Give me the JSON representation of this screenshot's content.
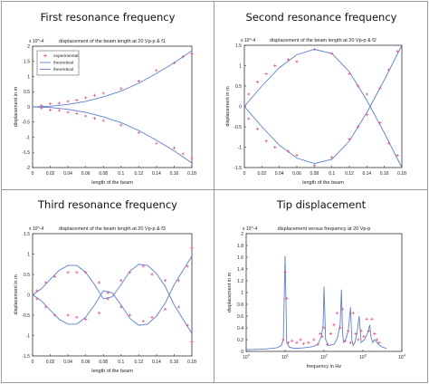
{
  "panels": [
    {
      "heading": "First resonance frequency"
    },
    {
      "heading": "Second resonance frequency"
    },
    {
      "heading": "Third resonance frequency"
    },
    {
      "heading": "Tip displacement"
    }
  ],
  "chart_data": [
    {
      "type": "line",
      "title": "displacement of the beam length at 20 Vp-p & f1",
      "xlabel": "length of the beam",
      "ylabel": "displacement in m",
      "exponent_label": "x 10^-4",
      "xlim": [
        0,
        0.18
      ],
      "ylim": [
        -2,
        2
      ],
      "xticks": [
        "0",
        "0.02",
        "0.04",
        "0.06",
        "0.08",
        "0.1",
        "0.12",
        "0.14",
        "0.16",
        "0.18"
      ],
      "yticks": [
        "-2",
        "-1.5",
        "-1",
        "-0.5",
        "0",
        "0.5",
        "1",
        "1.5",
        "2"
      ],
      "legend": [
        "experimental",
        "theoretical",
        "theoretical"
      ],
      "legend_position": "top-left",
      "series": [
        {
          "name": "theoretical",
          "x": [
            0,
            0.02,
            0.04,
            0.06,
            0.08,
            0.1,
            0.12,
            0.14,
            0.16,
            0.18
          ],
          "y": [
            0,
            0.02,
            0.08,
            0.18,
            0.33,
            0.52,
            0.78,
            1.1,
            1.45,
            1.85
          ]
        },
        {
          "name": "theoretical",
          "x": [
            0,
            0.02,
            0.04,
            0.06,
            0.08,
            0.1,
            0.12,
            0.14,
            0.16,
            0.18
          ],
          "y": [
            0,
            -0.02,
            -0.08,
            -0.18,
            -0.33,
            -0.52,
            -0.78,
            -1.1,
            -1.45,
            -1.85
          ]
        },
        {
          "name": "experimental",
          "x": [
            0.01,
            0.02,
            0.03,
            0.04,
            0.05,
            0.06,
            0.07,
            0.08,
            0.1,
            0.12,
            0.14,
            0.16,
            0.17,
            0.18,
            0.01,
            0.02,
            0.03,
            0.04,
            0.05,
            0.06,
            0.07,
            0.08,
            0.1,
            0.12,
            0.14,
            0.16,
            0.17,
            0.18
          ],
          "y": [
            0.05,
            0.1,
            0.12,
            0.18,
            0.22,
            0.3,
            0.38,
            0.45,
            0.6,
            0.85,
            1.2,
            1.45,
            1.65,
            1.75,
            -0.05,
            -0.1,
            -0.12,
            -0.18,
            -0.22,
            -0.3,
            -0.38,
            -0.45,
            -0.6,
            -0.85,
            -1.2,
            -1.35,
            -1.55,
            -1.7
          ]
        }
      ]
    },
    {
      "type": "line",
      "title": "displacement of the beam length at 20 Vp-p & f2",
      "xlabel": "length of the beam",
      "ylabel": "displacement in m",
      "exponent_label": "x 10^-4",
      "xlim": [
        0,
        0.18
      ],
      "ylim": [
        -1.5,
        1.5
      ],
      "xticks": [
        "0",
        "0.02",
        "0.04",
        "0.06",
        "0.08",
        "0.1",
        "0.12",
        "0.14",
        "0.16",
        "0.18"
      ],
      "yticks": [
        "-1.5",
        "-1",
        "-0.5",
        "0",
        "0.5",
        "1",
        "1.5"
      ],
      "series": [
        {
          "name": "",
          "x": [
            0,
            0.02,
            0.04,
            0.06,
            0.08,
            0.1,
            0.12,
            0.14,
            0.16,
            0.18
          ],
          "y": [
            0,
            0.5,
            0.95,
            1.27,
            1.4,
            1.3,
            0.85,
            0.15,
            -0.65,
            -1.5
          ]
        },
        {
          "name": "",
          "x": [
            0,
            0.02,
            0.04,
            0.06,
            0.08,
            0.1,
            0.12,
            0.14,
            0.16,
            0.18
          ],
          "y": [
            0,
            -0.5,
            -0.95,
            -1.27,
            -1.4,
            -1.3,
            -0.85,
            -0.15,
            0.65,
            1.5
          ]
        },
        {
          "name": "",
          "x": [
            0.005,
            0.015,
            0.025,
            0.035,
            0.05,
            0.06,
            0.08,
            0.1,
            0.12,
            0.13,
            0.14,
            0.155,
            0.165,
            0.175,
            0.005,
            0.015,
            0.025,
            0.035,
            0.05,
            0.06,
            0.08,
            0.1,
            0.12,
            0.13,
            0.14,
            0.155,
            0.165,
            0.175
          ],
          "y": [
            0.3,
            0.6,
            0.8,
            1.0,
            1.15,
            1.1,
            1.4,
            1.3,
            0.8,
            0.5,
            0.3,
            -0.4,
            -0.9,
            -1.2,
            -0.3,
            -0.55,
            -0.85,
            -1.0,
            -1.1,
            -1.2,
            -1.45,
            -1.25,
            -0.8,
            -0.5,
            -0.2,
            0.45,
            0.9,
            1.35
          ]
        }
      ]
    },
    {
      "type": "line",
      "title": "displacement of the beam length at 20 Vp-p & f3",
      "xlabel": "length of the beam",
      "ylabel": "displacement in m",
      "exponent_label": "x 10^-4",
      "xlim": [
        0,
        0.18
      ],
      "ylim": [
        -1.5,
        1.5
      ],
      "xticks": [
        "0",
        "0.02",
        "0.04",
        "0.06",
        "0.08",
        "0.1",
        "0.12",
        "0.14",
        "0.16",
        "0.18"
      ],
      "yticks": [
        "-1.5",
        "-1",
        "-0.5",
        "0",
        "0.5",
        "1",
        "1.5"
      ],
      "series": [
        {
          "name": "",
          "x": [
            0,
            0.01,
            0.02,
            0.03,
            0.04,
            0.05,
            0.06,
            0.07,
            0.08,
            0.09,
            0.1,
            0.11,
            0.12,
            0.13,
            0.14,
            0.15,
            0.16,
            0.17,
            0.18
          ],
          "y": [
            0,
            0.15,
            0.38,
            0.6,
            0.72,
            0.72,
            0.55,
            0.25,
            -0.1,
            -0.05,
            0.25,
            0.58,
            0.75,
            0.72,
            0.52,
            0.2,
            -0.25,
            -0.6,
            -0.95
          ]
        },
        {
          "name": "",
          "x": [
            0,
            0.01,
            0.02,
            0.03,
            0.04,
            0.05,
            0.06,
            0.07,
            0.08,
            0.09,
            0.1,
            0.11,
            0.12,
            0.13,
            0.14,
            0.15,
            0.16,
            0.17,
            0.18
          ],
          "y": [
            0,
            -0.15,
            -0.38,
            -0.6,
            -0.72,
            -0.72,
            -0.55,
            -0.25,
            0.1,
            0.05,
            -0.25,
            -0.58,
            -0.75,
            -0.72,
            -0.52,
            -0.2,
            0.25,
            0.6,
            0.95
          ]
        },
        {
          "name": "",
          "x": [
            0.005,
            0.015,
            0.025,
            0.04,
            0.05,
            0.06,
            0.075,
            0.085,
            0.1,
            0.11,
            0.125,
            0.135,
            0.15,
            0.165,
            0.175,
            0.18,
            0.005,
            0.015,
            0.025,
            0.04,
            0.05,
            0.06,
            0.075,
            0.085,
            0.1,
            0.11,
            0.125,
            0.135,
            0.15,
            0.165,
            0.175,
            0.18
          ],
          "y": [
            0.1,
            0.3,
            0.45,
            0.55,
            0.55,
            0.55,
            0.3,
            0.05,
            0.35,
            0.55,
            0.7,
            0.5,
            0.35,
            0.35,
            0.7,
            1.15,
            -0.1,
            -0.3,
            -0.5,
            -0.5,
            -0.55,
            -0.6,
            -0.45,
            -0.1,
            -0.3,
            -0.5,
            -0.65,
            -0.55,
            -0.35,
            -0.3,
            -0.75,
            -1.15
          ]
        }
      ]
    },
    {
      "type": "line",
      "title": "displacement versus frequency at 20 Vp-p",
      "xlabel": "frequency in Hz",
      "ylabel": "displacement in m",
      "exponent_label": "x 10^-4",
      "x_scale": "log",
      "xlim": [
        1,
        10000
      ],
      "ylim": [
        0,
        2
      ],
      "xticks": [
        "10^0",
        "10^1",
        "10^2",
        "10^3",
        "10^4"
      ],
      "yticks": [
        "0",
        "0.2",
        "0.4",
        "0.6",
        "0.8",
        "1",
        "1.2",
        "1.4",
        "1.6",
        "1.8",
        "2"
      ],
      "series": [
        {
          "name": "",
          "x": [
            1,
            3,
            6,
            8,
            9,
            10,
            11,
            13,
            18,
            30,
            50,
            70,
            85,
            95,
            100,
            110,
            130,
            180,
            220,
            260,
            280,
            300,
            320,
            360,
            420,
            480,
            520,
            560,
            620,
            700,
            800,
            900,
            1100,
            1300,
            1500,
            1600,
            1800,
            2000,
            2500,
            3000,
            4000
          ],
          "y": [
            0.03,
            0.04,
            0.06,
            0.1,
            0.2,
            1.62,
            0.15,
            0.07,
            0.05,
            0.06,
            0.08,
            0.12,
            0.25,
            0.45,
            1.1,
            0.2,
            0.1,
            0.12,
            0.22,
            0.45,
            1.05,
            0.3,
            0.15,
            0.2,
            0.35,
            0.75,
            0.2,
            0.1,
            0.15,
            0.3,
            0.6,
            0.15,
            0.2,
            0.3,
            0.45,
            0.25,
            0.15,
            0.2,
            0.12,
            0.08,
            0.05
          ]
        },
        {
          "name": "",
          "x": [
            9,
            10,
            11,
            12,
            15,
            20,
            25,
            30,
            40,
            55,
            70,
            80,
            90,
            100,
            120,
            150,
            180,
            220,
            260,
            300,
            350,
            420,
            480,
            560,
            650,
            760,
            900,
            1050,
            1250,
            1400,
            1700,
            2000,
            2300,
            2600
          ],
          "y": [
            0.2,
            1.35,
            0.9,
            0.15,
            0.18,
            0.15,
            0.2,
            0.13,
            0.15,
            0.2,
            0.12,
            0.3,
            0.25,
            0.4,
            0.12,
            0.3,
            0.45,
            0.65,
            0.4,
            0.72,
            0.18,
            0.35,
            0.15,
            0.65,
            0.3,
            0.2,
            0.35,
            0.25,
            0.55,
            0.35,
            0.55,
            0.3,
            0.2,
            0.15
          ]
        }
      ]
    }
  ]
}
